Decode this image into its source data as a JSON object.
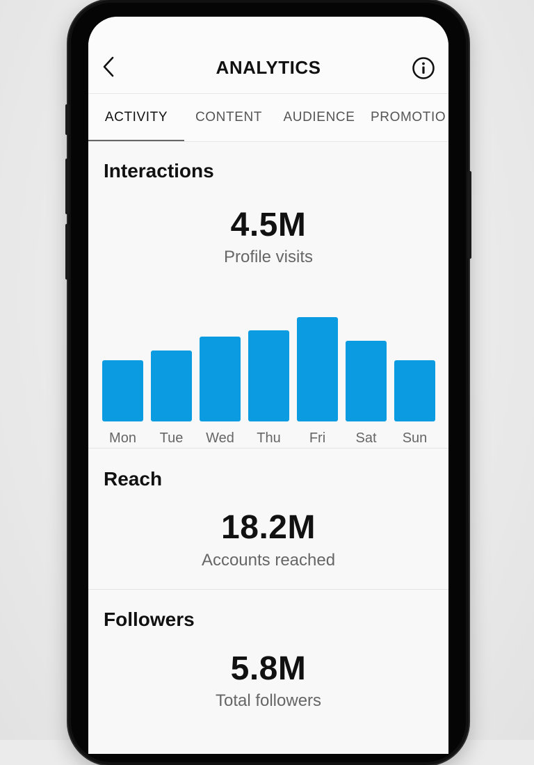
{
  "header": {
    "title": "ANALYTICS",
    "back_icon": "chevron-left-icon",
    "info_icon": "info-icon"
  },
  "tabs": [
    {
      "label": "ACTIVITY",
      "active": true
    },
    {
      "label": "CONTENT",
      "active": false
    },
    {
      "label": "AUDIENCE",
      "active": false
    },
    {
      "label": "PROMOTIO",
      "active": false
    }
  ],
  "interactions": {
    "title": "Interactions",
    "value": "4.5M",
    "label": "Profile visits"
  },
  "reach": {
    "title": "Reach",
    "value": "18.2M",
    "label": "Accounts reached"
  },
  "followers": {
    "title": "Followers",
    "value": "5.8M",
    "label": "Total followers"
  },
  "colors": {
    "bar": "#0a9be0",
    "accent": "#111111"
  },
  "chart_data": {
    "type": "bar",
    "categories": [
      "Mon",
      "Tue",
      "Wed",
      "Thu",
      "Fri",
      "Sat",
      "Sun"
    ],
    "values": [
      88,
      102,
      122,
      131,
      150,
      116,
      88
    ],
    "ylim": [
      0,
      150
    ],
    "grid": false,
    "legend": "none"
  }
}
